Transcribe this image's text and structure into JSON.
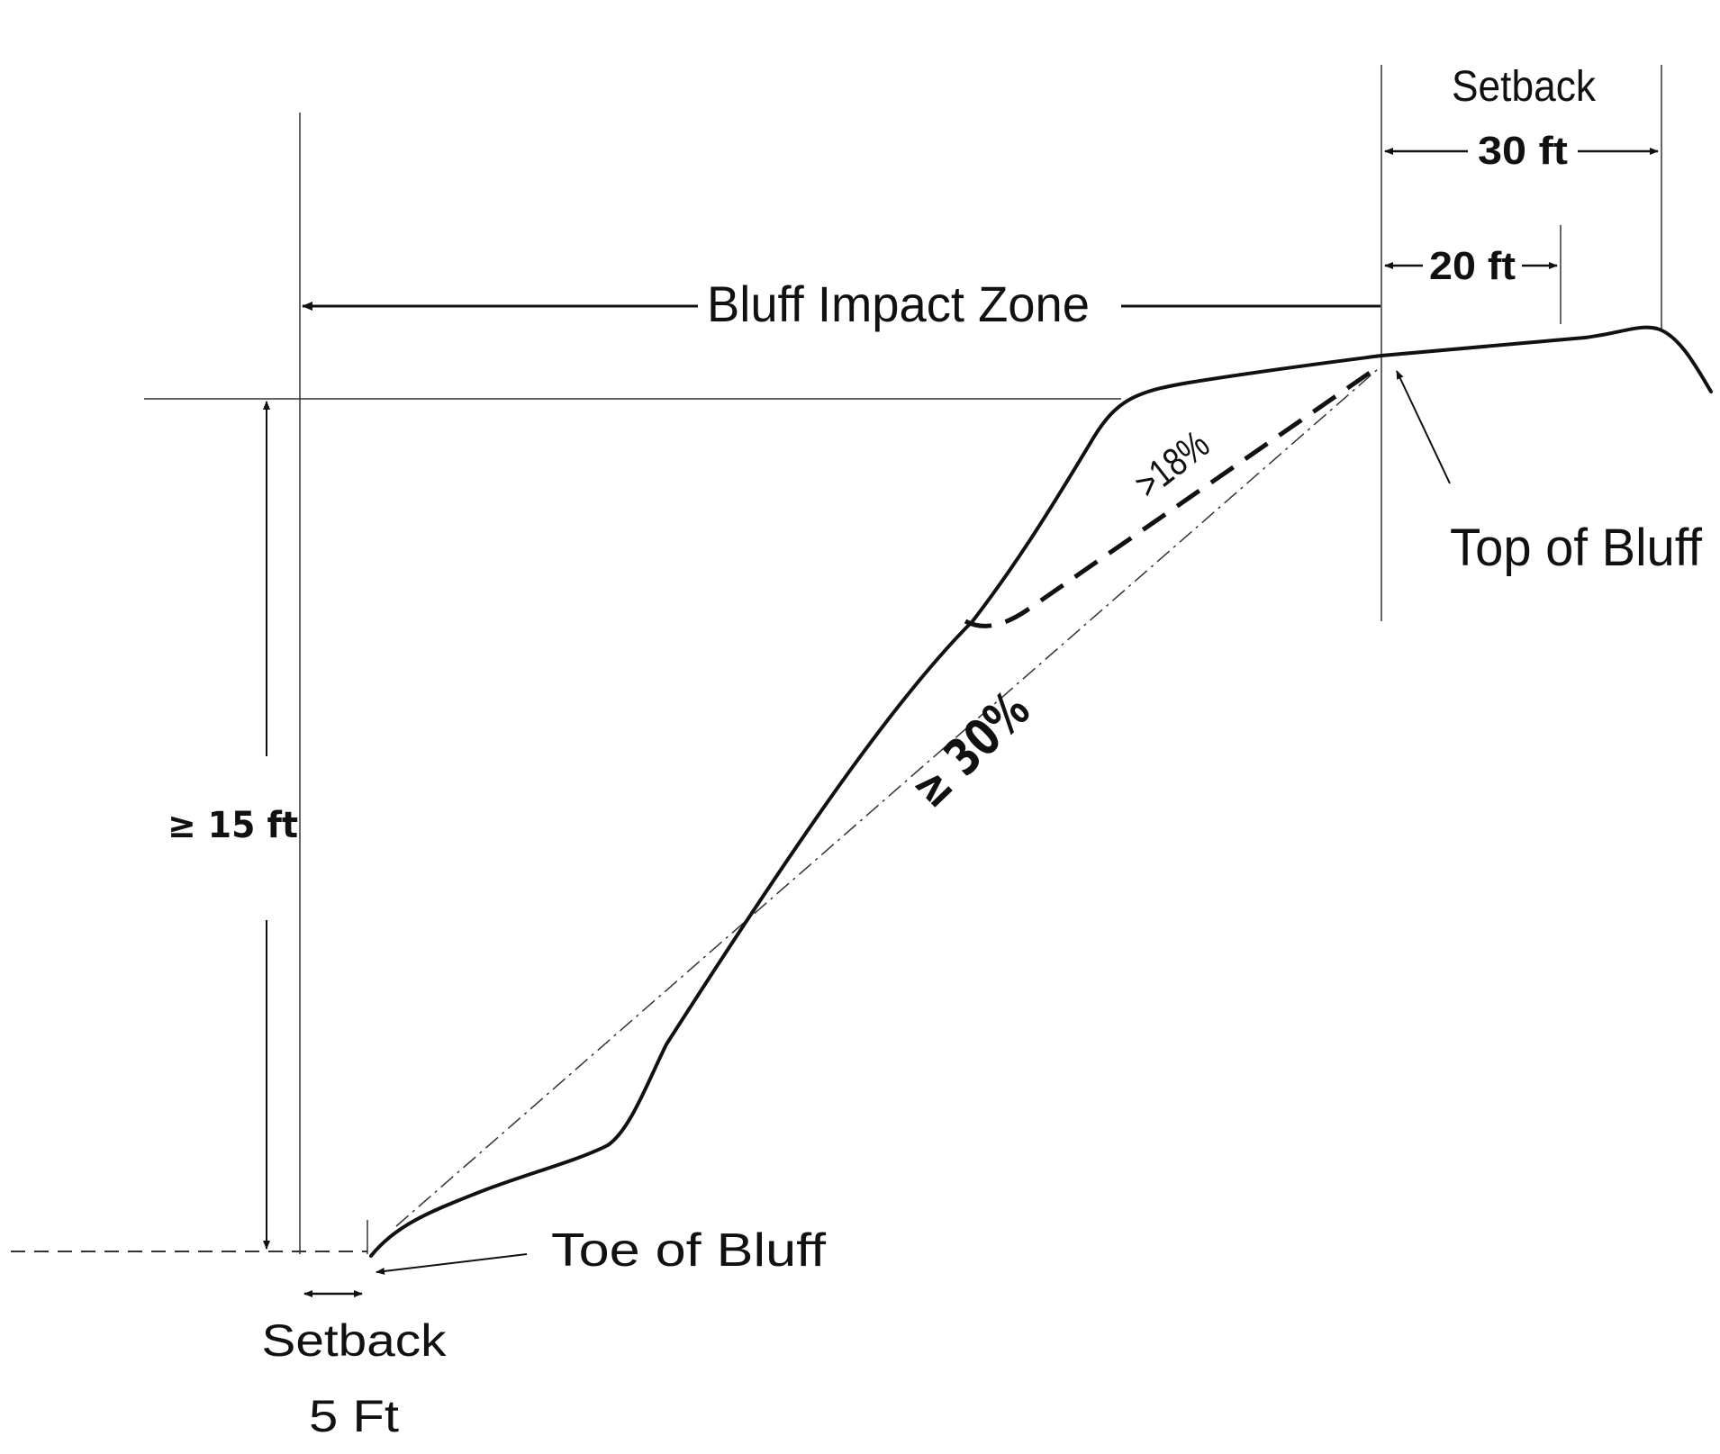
{
  "labels": {
    "setback_top": "Setback",
    "setback_30": "30 ft",
    "dim_20": "20 ft",
    "bluff_impact_zone": "Bluff Impact Zone",
    "slope_18": ">18%",
    "slope_30": "≥ 30%",
    "height_15": "≥ 15 ft",
    "top_of_bluff": "Top of Bluff",
    "toe_of_bluff": "Toe of Bluff",
    "setback_bottom": "Setback",
    "setback_5": "5 Ft"
  },
  "colors": {
    "ink": "#111111",
    "light_line": "#333333",
    "background": "#ffffff"
  }
}
